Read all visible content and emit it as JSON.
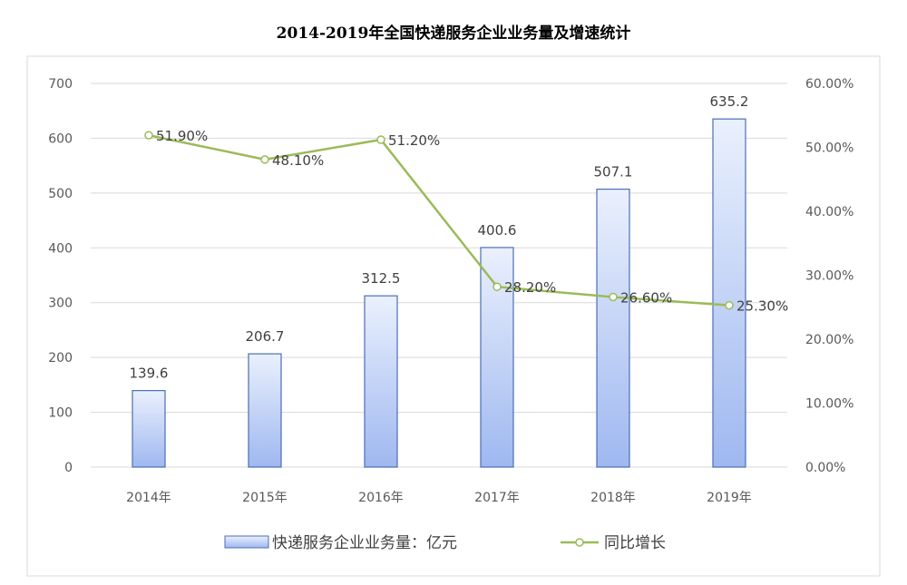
{
  "chart_data": {
    "type": "bar",
    "title": "2014-2019年全国快递服务企业业务量及增速统计",
    "categories": [
      "2014年",
      "2015年",
      "2016年",
      "2017年",
      "2018年",
      "2019年"
    ],
    "series": [
      {
        "name": "快递服务企业业务量：亿元",
        "type": "bar",
        "axis": "left",
        "values": [
          139.6,
          206.7,
          312.5,
          400.6,
          507.1,
          635.2
        ],
        "labels": [
          "139.6",
          "206.7",
          "312.5",
          "400.6",
          "507.1",
          "635.2"
        ]
      },
      {
        "name": "同比增长",
        "type": "line",
        "axis": "right",
        "values": [
          51.9,
          48.1,
          51.2,
          28.2,
          26.6,
          25.3
        ],
        "labels": [
          "51.90%",
          "48.10%",
          "51.20%",
          "28.20%",
          "26.60%",
          "25.30%"
        ]
      }
    ],
    "y_left": {
      "range": [
        0,
        700
      ],
      "ticks": [
        "0",
        "100",
        "200",
        "300",
        "400",
        "500",
        "600",
        "700"
      ]
    },
    "y_right": {
      "range": [
        0,
        60
      ],
      "ticks": [
        "0.00%",
        "10.00%",
        "20.00%",
        "30.00%",
        "40.00%",
        "50.00%",
        "60.00%"
      ]
    },
    "grid": true,
    "legend": "bottom",
    "colors": {
      "bar_fill_top": "#eaf0fd",
      "bar_fill_bottom": "#9fb8f0",
      "bar_stroke": "#4a6fb5",
      "line": "#9bbb59",
      "gridline": "#d9d9d9",
      "frame": "#d9d9d9"
    }
  }
}
